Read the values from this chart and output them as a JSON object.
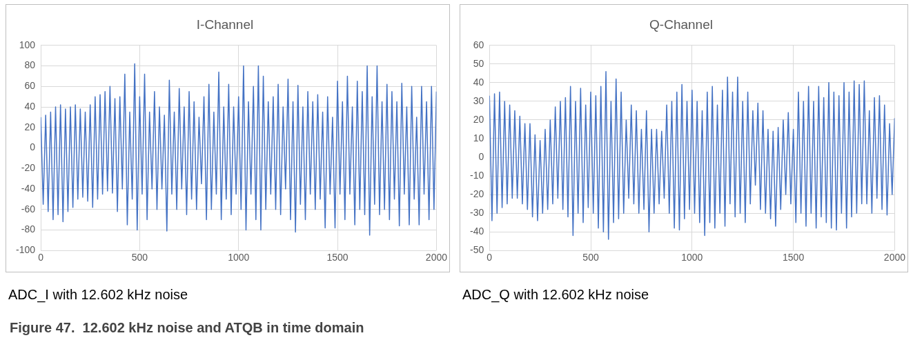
{
  "chart_data": [
    {
      "type": "line",
      "title": "I-Channel",
      "annotations": [
        "ADC_I with 12.602 kHz noise",
        "Figure 47.  12.602 kHz noise and ATQB in time domain"
      ],
      "grid": true,
      "marker": "none",
      "xlim": [
        0,
        2000
      ],
      "xticks": [
        0,
        500,
        1000,
        1500,
        2000
      ],
      "ylim": [
        -100,
        100
      ],
      "yticks": [
        -100,
        -80,
        -60,
        -40,
        -20,
        0,
        20,
        40,
        60,
        80,
        100
      ],
      "x": [
        0,
        12.5,
        25,
        37.5,
        50,
        62.5,
        75,
        87.5,
        100,
        112.5,
        125,
        137.5,
        150,
        162.5,
        175,
        187.5,
        200,
        212.5,
        225,
        237.5,
        250,
        262.5,
        275,
        287.5,
        300,
        312.5,
        325,
        337.5,
        350,
        362.5,
        375,
        387.5,
        400,
        412.5,
        425,
        437.5,
        450,
        462.5,
        475,
        487.5,
        500,
        512.5,
        525,
        537.5,
        550,
        562.5,
        575,
        587.5,
        600,
        612.5,
        625,
        637.5,
        650,
        662.5,
        675,
        687.5,
        700,
        712.5,
        725,
        737.5,
        750,
        762.5,
        775,
        787.5,
        800,
        812.5,
        825,
        837.5,
        850,
        862.5,
        875,
        887.5,
        900,
        912.5,
        925,
        937.5,
        950,
        962.5,
        975,
        987.5,
        1000,
        1012.5,
        1025,
        1037.5,
        1050,
        1062.5,
        1075,
        1087.5,
        1100,
        1112.5,
        1125,
        1137.5,
        1150,
        1162.5,
        1175,
        1187.5,
        1200,
        1212.5,
        1225,
        1237.5,
        1250,
        1262.5,
        1275,
        1287.5,
        1300,
        1312.5,
        1325,
        1337.5,
        1350,
        1362.5,
        1375,
        1387.5,
        1400,
        1412.5,
        1425,
        1437.5,
        1450,
        1462.5,
        1475,
        1487.5,
        1500,
        1512.5,
        1525,
        1537.5,
        1550,
        1562.5,
        1575,
        1587.5,
        1600,
        1612.5,
        1625,
        1637.5,
        1650,
        1662.5,
        1675,
        1687.5,
        1700,
        1712.5,
        1725,
        1737.5,
        1750,
        1762.5,
        1775,
        1787.5,
        1800,
        1812.5,
        1825,
        1837.5,
        1850,
        1862.5,
        1875,
        1887.5,
        1900,
        1912.5,
        1925,
        1937.5,
        1950,
        1962.5,
        1975,
        1987.5,
        2000
      ],
      "series": [
        {
          "color": "#4472c4",
          "values": [
            30,
            -55,
            32,
            -62,
            35,
            -70,
            40,
            -65,
            42,
            -72,
            38,
            -62,
            40,
            -58,
            42,
            -50,
            38,
            -48,
            35,
            -52,
            42,
            -58,
            50,
            -50,
            52,
            -45,
            55,
            -42,
            60,
            -44,
            48,
            -62,
            50,
            -40,
            72,
            -75,
            35,
            -50,
            82,
            -80,
            50,
            -45,
            72,
            -70,
            35,
            -40,
            55,
            -60,
            40,
            -40,
            32,
            -81,
            66,
            -45,
            35,
            -60,
            58,
            -40,
            40,
            -65,
            55,
            -50,
            45,
            -60,
            30,
            -35,
            50,
            -70,
            62,
            -60,
            35,
            -45,
            74,
            -70,
            40,
            -50,
            62,
            -65,
            40,
            -45,
            50,
            -60,
            80,
            -80,
            45,
            -45,
            60,
            -70,
            80,
            -80,
            70,
            -60,
            45,
            -45,
            50,
            -60,
            62,
            -65,
            40,
            -40,
            67,
            -70,
            45,
            -82,
            61,
            -55,
            40,
            -70,
            55,
            -45,
            45,
            -60,
            52,
            -50,
            35,
            -78,
            50,
            -45,
            30,
            -78,
            65,
            -45,
            45,
            -70,
            70,
            -45,
            40,
            -75,
            65,
            -60,
            55,
            -65,
            80,
            -85,
            50,
            -55,
            80,
            -65,
            45,
            -60,
            62,
            -70,
            55,
            -50,
            45,
            -76,
            63,
            -45,
            40,
            -75,
            60,
            -50,
            30,
            -75,
            60,
            -45,
            45,
            -70,
            60,
            -60,
            55
          ]
        }
      ]
    },
    {
      "type": "line",
      "title": "Q-Channel",
      "annotations": [
        "ADC_Q with 12.602 kHz noise"
      ],
      "grid": true,
      "marker": "none",
      "xlim": [
        0,
        2000
      ],
      "xticks": [
        0,
        500,
        1000,
        1500,
        2000
      ],
      "ylim": [
        -50,
        60
      ],
      "yticks": [
        -50,
        -40,
        -30,
        -20,
        -10,
        0,
        10,
        20,
        30,
        40,
        50,
        60
      ],
      "x": [
        0,
        12.5,
        25,
        37.5,
        50,
        62.5,
        75,
        87.5,
        100,
        112.5,
        125,
        137.5,
        150,
        162.5,
        175,
        187.5,
        200,
        212.5,
        225,
        237.5,
        250,
        262.5,
        275,
        287.5,
        300,
        312.5,
        325,
        337.5,
        350,
        362.5,
        375,
        387.5,
        400,
        412.5,
        425,
        437.5,
        450,
        462.5,
        475,
        487.5,
        500,
        512.5,
        525,
        537.5,
        550,
        562.5,
        575,
        587.5,
        600,
        612.5,
        625,
        637.5,
        650,
        662.5,
        675,
        687.5,
        700,
        712.5,
        725,
        737.5,
        750,
        762.5,
        775,
        787.5,
        800,
        812.5,
        825,
        837.5,
        850,
        862.5,
        875,
        887.5,
        900,
        912.5,
        925,
        937.5,
        950,
        962.5,
        975,
        987.5,
        1000,
        1012.5,
        1025,
        1037.5,
        1050,
        1062.5,
        1075,
        1087.5,
        1100,
        1112.5,
        1125,
        1137.5,
        1150,
        1162.5,
        1175,
        1187.5,
        1200,
        1212.5,
        1225,
        1237.5,
        1250,
        1262.5,
        1275,
        1287.5,
        1300,
        1312.5,
        1325,
        1337.5,
        1350,
        1362.5,
        1375,
        1387.5,
        1400,
        1412.5,
        1425,
        1437.5,
        1450,
        1462.5,
        1475,
        1487.5,
        1500,
        1512.5,
        1525,
        1537.5,
        1550,
        1562.5,
        1575,
        1587.5,
        1600,
        1612.5,
        1625,
        1637.5,
        1650,
        1662.5,
        1675,
        1687.5,
        1700,
        1712.5,
        1725,
        1737.5,
        1750,
        1762.5,
        1775,
        1787.5,
        1800,
        1812.5,
        1825,
        1837.5,
        1850,
        1862.5,
        1875,
        1887.5,
        1900,
        1912.5,
        1925,
        1937.5,
        1950,
        1962.5,
        1975,
        1987.5,
        2000
      ],
      "series": [
        {
          "color": "#4472c4",
          "values": [
            33,
            -34,
            34,
            -30,
            35,
            -27,
            30,
            -25,
            28,
            -22,
            25,
            -22,
            22,
            -25,
            18,
            -28,
            18,
            -32,
            12,
            -34,
            9,
            -30,
            15,
            -28,
            20,
            -25,
            27,
            -22,
            30,
            -28,
            32,
            -32,
            38,
            -42,
            30,
            -30,
            37,
            -35,
            28,
            -27,
            35,
            -30,
            33,
            -38,
            38,
            -40,
            46,
            -44,
            30,
            -35,
            42,
            -33,
            35,
            -30,
            20,
            -22,
            28,
            -25,
            25,
            -30,
            15,
            -28,
            25,
            -40,
            15,
            -30,
            15,
            -25,
            14,
            -22,
            28,
            -30,
            30,
            -38,
            35,
            -39,
            39,
            -33,
            30,
            -28,
            36,
            -30,
            30,
            -35,
            25,
            -42,
            35,
            -35,
            38,
            -38,
            28,
            -30,
            36,
            -37,
            43,
            -25,
            35,
            -32,
            43,
            -30,
            30,
            -35,
            35,
            -25,
            25,
            -15,
            29,
            -28,
            25,
            -30,
            15,
            -33,
            14,
            -37,
            16,
            -28,
            20,
            -20,
            24,
            -25,
            15,
            -35,
            35,
            -30,
            30,
            -37,
            38,
            -30,
            30,
            -38,
            38,
            -32,
            32,
            -35,
            40,
            -38,
            35,
            -39,
            33,
            -30,
            40,
            -38,
            35,
            -32,
            41,
            -30,
            39,
            -25,
            41,
            -25,
            25,
            -30,
            32,
            -22,
            33,
            -28,
            28,
            -31,
            18,
            -20,
            21
          ]
        }
      ]
    }
  ]
}
